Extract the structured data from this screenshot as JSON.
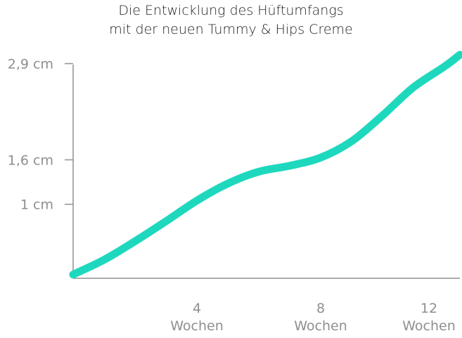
{
  "chart_data": {
    "type": "line",
    "title_lines": [
      "Die Entwicklung des Hüftumfangs",
      "mit der neuen Tummy & Hips Creme"
    ],
    "xlabel": "",
    "ylabel": "",
    "x_ticks": [
      {
        "value": 4,
        "number": "4",
        "unit": "Wochen"
      },
      {
        "value": 8,
        "number": "8",
        "unit": "Wochen"
      },
      {
        "value": 12,
        "number": "12",
        "unit": "Wochen"
      }
    ],
    "y_ticks": [
      {
        "value": 1.0,
        "label": "1 cm"
      },
      {
        "value": 1.6,
        "label": "1,6 cm"
      },
      {
        "value": 2.9,
        "label": "2,9 cm"
      }
    ],
    "xlim": [
      0,
      12.5
    ],
    "ylim": [
      0,
      3.0
    ],
    "series": [
      {
        "color": "#1ed8be",
        "points": [
          [
            0,
            0.05
          ],
          [
            1,
            0.25
          ],
          [
            2,
            0.5
          ],
          [
            3,
            0.77
          ],
          [
            4,
            1.05
          ],
          [
            5,
            1.28
          ],
          [
            6,
            1.44
          ],
          [
            7,
            1.52
          ],
          [
            8,
            1.63
          ],
          [
            9,
            1.85
          ],
          [
            10,
            2.2
          ],
          [
            11,
            2.58
          ],
          [
            12,
            2.86
          ],
          [
            12.5,
            3.02
          ]
        ]
      }
    ],
    "grid": false,
    "axis_color": "#8f8f8f"
  }
}
